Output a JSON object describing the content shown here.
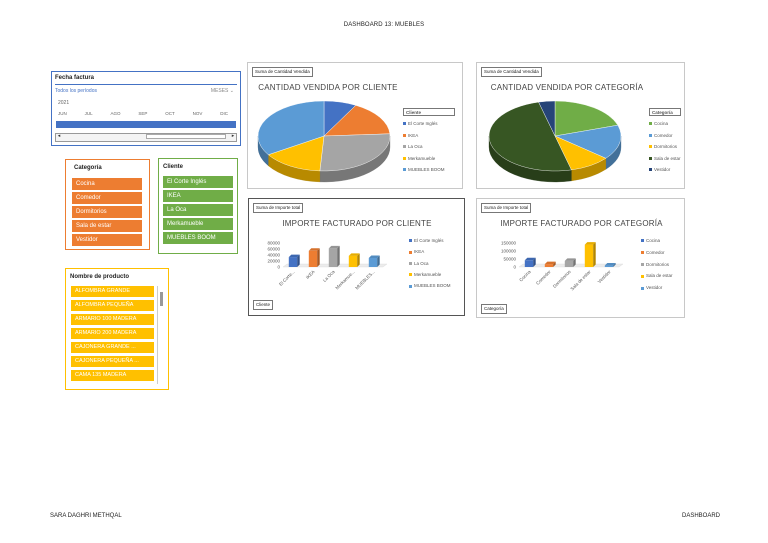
{
  "page": {
    "title": "DASHBOARD 13: MUEBLES",
    "footer_left": "SARA DAGHRI METHQAL",
    "footer_right": "DASHBOARD"
  },
  "timeline": {
    "title": "Fecha factura",
    "all_label": "Todos los períodos",
    "unit": "MESES",
    "year": "2021",
    "months": [
      "JUN",
      "JUL",
      "AGO",
      "SEP",
      "OCT",
      "NOV",
      "DIC"
    ],
    "accent": "#4472c4"
  },
  "slicers": {
    "categoria": {
      "title": "Categoría",
      "items": [
        "Cocina",
        "Comedor",
        "Dormitorios",
        "Sala de estar",
        "Vestidor"
      ],
      "color": "#ed7d31"
    },
    "cliente": {
      "title": "Cliente",
      "items": [
        "El Corte Inglés",
        "IKEA",
        "La Oca",
        "Merkamueble",
        "MUEBLES BOOM"
      ],
      "color": "#70ad47"
    },
    "producto": {
      "title": "Nombre de producto",
      "items": [
        "ALFOMBRA GRANDE",
        "ALFOMBRA PEQUEÑA",
        "ARMARIO 100 MADERA",
        "ARMARIO 200 MADERA",
        "CAJONERA GRANDE ...",
        "CAJONERA PEQUEÑA ...",
        "CAMA 135 MADERA"
      ],
      "color": "#ffc000"
    }
  },
  "charts": {
    "pie_cliente": {
      "field_button": "Suma de Cantidad Vendida",
      "legend_title": "Cliente"
    },
    "pie_categoria": {
      "field_button": "Suma de Cantidad Vendida",
      "legend_title": "Categoría"
    },
    "bar_cliente": {
      "field_button": "Suma de Importe total",
      "axis_button": "Cliente"
    },
    "bar_categoria": {
      "field_button": "Suma de Importe total",
      "axis_button": "Categoría"
    }
  },
  "chart_data": [
    {
      "type": "pie",
      "title": "CANTIDAD VENDIDA POR CLIENTE",
      "categories": [
        "El Corte Inglés",
        "IKEA",
        "La Oca",
        "Merkamueble",
        "MUEBLES BOOM"
      ],
      "values": [
        8,
        16,
        27,
        15,
        34
      ],
      "colors": [
        "#4472c4",
        "#ed7d31",
        "#a5a5a5",
        "#ffc000",
        "#5b9bd5"
      ],
      "legend_labels": [
        "El Corte Inglés",
        "IKEA",
        "La Oca",
        "Merkamueble",
        "MUEBLES BOOM"
      ],
      "legend": "right"
    },
    {
      "type": "pie",
      "title": "CANTIDAD VENDIDA POR CATEGORÍA",
      "categories": [
        "Cocina",
        "Comedor",
        "Dormitorios",
        "Sala de estar",
        "Vestidor"
      ],
      "values": [
        20,
        16,
        10,
        50,
        4
      ],
      "colors": [
        "#70ad47",
        "#5b9bd5",
        "#ffc000",
        "#375623",
        "#264478"
      ],
      "legend_labels": [
        "Cocina",
        "Comedor",
        "Dormitorios",
        "Sala de estar",
        "Vestidor"
      ],
      "legend": "right"
    },
    {
      "type": "bar",
      "title": "IMPORTE FACTURADO POR CLIENTE",
      "categories": [
        "El Corte...",
        "IKEA",
        "La Oca",
        "Merkamue...",
        "MUEBLES..."
      ],
      "values": [
        33000,
        54000,
        62000,
        37000,
        30000
      ],
      "colors": [
        "#4472c4",
        "#ed7d31",
        "#a5a5a5",
        "#ffc000",
        "#5b9bd5"
      ],
      "yticks": [
        "80000",
        "60000",
        "40000",
        "20000",
        "0"
      ],
      "ylim": [
        0,
        80000
      ],
      "legend_labels": [
        "El Corte Inglés",
        "IKEA",
        "La Oca",
        "Merkamueble",
        "MUEBLES BOOM"
      ],
      "legend": "right"
    },
    {
      "type": "bar",
      "title": "IMPORTE FACTURADO POR CATEGORÍA",
      "categories": [
        "Cocina",
        "Comedor",
        "Dormitorios",
        "Sala de estar",
        "Vestidor"
      ],
      "values": [
        42000,
        18000,
        38000,
        140000,
        9000
      ],
      "colors": [
        "#4472c4",
        "#ed7d31",
        "#a5a5a5",
        "#ffc000",
        "#5b9bd5"
      ],
      "yticks": [
        "150000",
        "100000",
        "50000",
        "0"
      ],
      "ylim": [
        0,
        150000
      ],
      "legend_labels": [
        "Cocina",
        "Comedor",
        "Dormitorios",
        "Sala de estar",
        "Vestidor"
      ],
      "legend": "right"
    }
  ]
}
